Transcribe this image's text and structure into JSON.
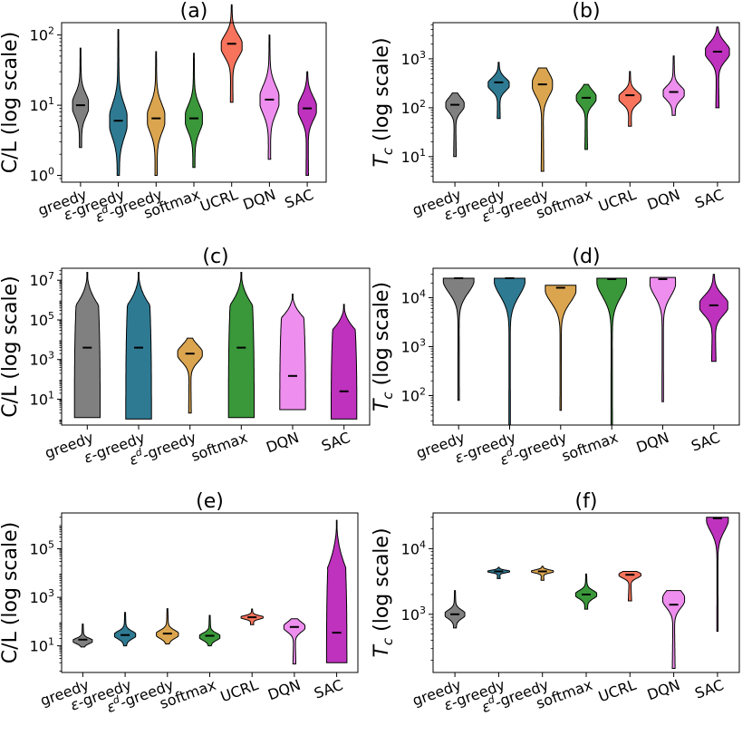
{
  "chart_data": [
    {
      "type": "violin",
      "panel": "a",
      "title": "(a)",
      "ylabel": "C/L (log scale)",
      "xlabel": "",
      "yscale": "log",
      "ylim": [
        0.8,
        150
      ],
      "yticks": [
        {
          "value": 1,
          "base": "10",
          "exp": "0"
        },
        {
          "value": 10,
          "base": "10",
          "exp": "1"
        },
        {
          "value": 100,
          "base": "10",
          "exp": "2"
        }
      ],
      "categories": [
        "greedy",
        "ε-greedy",
        "εd-greedy",
        "softmax",
        "UCRL",
        "DQN",
        "SAC"
      ],
      "category_labels": [
        {
          "main": "greedy"
        },
        {
          "main": "ε-greedy"
        },
        {
          "main": "ε",
          "sup": "d",
          "rest": "-greedy"
        },
        {
          "main": "softmax"
        },
        {
          "main": "UCRL"
        },
        {
          "main": "DQN"
        },
        {
          "main": "SAC"
        }
      ],
      "colors": [
        "#808080",
        "#2f7a93",
        "#dba550",
        "#3a973a",
        "#f7735c",
        "#ee8eee",
        "#be32be"
      ],
      "series": [
        {
          "name": "greedy",
          "min": 2.5,
          "max": 65,
          "median": 10,
          "mode": 10,
          "width": 0.42,
          "thin": 0.18
        },
        {
          "name": "ε-greedy",
          "min": 1.0,
          "max": 120,
          "median": 6,
          "mode": 6,
          "width": 0.46,
          "thin": 0.18
        },
        {
          "name": "εd-greedy",
          "min": 1.0,
          "max": 58,
          "median": 6.5,
          "mode": 6.5,
          "width": 0.46,
          "thin": 0.18
        },
        {
          "name": "softmax",
          "min": 1.3,
          "max": 55,
          "median": 6.5,
          "mode": 6.5,
          "width": 0.45,
          "thin": 0.18
        },
        {
          "name": "UCRL",
          "min": 11,
          "max": 270,
          "median": 75,
          "mode": 70,
          "width": 0.55,
          "thin": 0.22
        },
        {
          "name": "DQN",
          "min": 1.7,
          "max": 100,
          "median": 12,
          "mode": 12,
          "width": 0.5,
          "thin": 0.2
        },
        {
          "name": "SAC",
          "min": 1.0,
          "max": 30,
          "median": 9,
          "mode": 9,
          "width": 0.48,
          "thin": 0.2
        }
      ]
    },
    {
      "type": "violin",
      "panel": "b",
      "title": "(b)",
      "ylabel": "Tc (log scale)",
      "ylabel_main": "T",
      "ylabel_sub": "c",
      "ylabel_rest": " (log scale)",
      "xlabel": "",
      "yscale": "log",
      "ylim": [
        3,
        5500
      ],
      "yticks": [
        {
          "value": 10,
          "base": "10",
          "exp": "1"
        },
        {
          "value": 100,
          "base": "10",
          "exp": "2"
        },
        {
          "value": 1000,
          "base": "10",
          "exp": "3"
        }
      ],
      "categories": [
        "greedy",
        "ε-greedy",
        "εd-greedy",
        "softmax",
        "UCRL",
        "DQN",
        "SAC"
      ],
      "category_labels": [
        {
          "main": "greedy"
        },
        {
          "main": "ε-greedy"
        },
        {
          "main": "ε",
          "sup": "d",
          "rest": "-greedy"
        },
        {
          "main": "softmax"
        },
        {
          "main": "UCRL"
        },
        {
          "main": "DQN"
        },
        {
          "main": "SAC"
        }
      ],
      "colors": [
        "#808080",
        "#2f7a93",
        "#dba550",
        "#3a973a",
        "#f7735c",
        "#ee8eee",
        "#be32be"
      ],
      "series": [
        {
          "name": "greedy",
          "min": 10,
          "max": 200,
          "median": 115,
          "mode": 115,
          "width": 0.42,
          "thin": 0.18
        },
        {
          "name": "ε-greedy",
          "min": 60,
          "max": 850,
          "median": 330,
          "mode": 300,
          "width": 0.48,
          "thin": 0.22
        },
        {
          "name": "εd-greedy",
          "min": 5,
          "max": 650,
          "median": 300,
          "mode": 300,
          "width": 0.46,
          "thin": 0.18
        },
        {
          "name": "softmax",
          "min": 14,
          "max": 300,
          "median": 160,
          "mode": 160,
          "width": 0.45,
          "thin": 0.18
        },
        {
          "name": "UCRL",
          "min": 42,
          "max": 550,
          "median": 180,
          "mode": 160,
          "width": 0.5,
          "thin": 0.22
        },
        {
          "name": "DQN",
          "min": 70,
          "max": 1150,
          "median": 210,
          "mode": 200,
          "width": 0.48,
          "thin": 0.22
        },
        {
          "name": "SAC",
          "min": 100,
          "max": 4500,
          "median": 1400,
          "mode": 1400,
          "width": 0.55,
          "thin": 0.25
        }
      ]
    },
    {
      "type": "violin",
      "panel": "c",
      "title": "(c)",
      "ylabel": "C/L (log scale)",
      "xlabel": "",
      "yscale": "log",
      "ylim": [
        0.5,
        40000000.0
      ],
      "yticks": [
        {
          "value": 10,
          "base": "10",
          "exp": "1"
        },
        {
          "value": 1000,
          "base": "10",
          "exp": "3"
        },
        {
          "value": 100000,
          "base": "10",
          "exp": "5"
        },
        {
          "value": 10000000,
          "base": "10",
          "exp": "7"
        }
      ],
      "categories": [
        "greedy",
        "ε-greedy",
        "εd-greedy",
        "softmax",
        "DQN",
        "SAC"
      ],
      "category_labels": [
        {
          "main": "greedy"
        },
        {
          "main": "ε-greedy"
        },
        {
          "main": "ε",
          "sup": "d",
          "rest": "-greedy"
        },
        {
          "main": "softmax"
        },
        {
          "main": "DQN"
        },
        {
          "main": "SAC"
        }
      ],
      "colors": [
        "#808080",
        "#2f7a93",
        "#dba550",
        "#3a973a",
        "#ee8eee",
        "#be32be"
      ],
      "series": [
        {
          "name": "greedy",
          "min": 1.2,
          "max": 25000000.0,
          "median": 4000,
          "shape": "tapered",
          "widthLow": 0.5,
          "topKnee": 500000.0
        },
        {
          "name": "ε-greedy",
          "min": 1.0,
          "max": 25000000.0,
          "median": 4000,
          "shape": "tapered",
          "widthLow": 0.5,
          "topKnee": 500000.0
        },
        {
          "name": "εd-greedy",
          "min": 2.0,
          "max": 12000,
          "median": 2000,
          "mode": 2000,
          "width": 0.48,
          "thin": 0.14
        },
        {
          "name": "softmax",
          "min": 1.2,
          "max": 25000000.0,
          "median": 4000,
          "shape": "tapered",
          "widthLow": 0.5,
          "topKnee": 500000.0
        },
        {
          "name": "DQN",
          "min": 3.0,
          "max": 2000000.0,
          "median": 150,
          "shape": "tapered",
          "widthLow": 0.5,
          "topKnee": 120000.0
        },
        {
          "name": "SAC",
          "min": 1.0,
          "max": 600000.0,
          "median": 25,
          "shape": "tapered",
          "widthLow": 0.5,
          "topKnee": 30000.0
        }
      ]
    },
    {
      "type": "violin",
      "panel": "d",
      "title": "(d)",
      "ylabel": "Tc (log scale)",
      "ylabel_main": "T",
      "ylabel_sub": "c",
      "ylabel_rest": " (log scale)",
      "xlabel": "",
      "yscale": "log",
      "ylim": [
        25,
        40000
      ],
      "yticks": [
        {
          "value": 100,
          "base": "10",
          "exp": "2"
        },
        {
          "value": 1000,
          "base": "10",
          "exp": "3"
        },
        {
          "value": 10000,
          "base": "10",
          "exp": "4"
        }
      ],
      "categories": [
        "greedy",
        "ε-greedy",
        "εd-greedy",
        "softmax",
        "DQN",
        "SAC"
      ],
      "category_labels": [
        {
          "main": "greedy"
        },
        {
          "main": "ε-greedy"
        },
        {
          "main": "ε",
          "sup": "d",
          "rest": "-greedy"
        },
        {
          "main": "softmax"
        },
        {
          "main": "DQN"
        },
        {
          "main": "SAC"
        }
      ],
      "colors": [
        "#808080",
        "#2f7a93",
        "#dba550",
        "#3a973a",
        "#ee8eee",
        "#be32be"
      ],
      "series": [
        {
          "name": "greedy",
          "min": 80,
          "max": 25000,
          "median": 25000,
          "mode": 24000,
          "width": 0.6,
          "thin": 0.04
        },
        {
          "name": "ε-greedy",
          "min": 25,
          "max": 25000,
          "median": 25000,
          "mode": 24000,
          "width": 0.6,
          "thin": 0.04
        },
        {
          "name": "εd-greedy",
          "min": 50,
          "max": 18000,
          "median": 16000,
          "mode": 15500,
          "width": 0.6,
          "thin": 0.04
        },
        {
          "name": "softmax",
          "min": 25,
          "max": 25000,
          "median": 24000,
          "mode": 23000,
          "width": 0.58,
          "thin": 0.04
        },
        {
          "name": "DQN",
          "min": 75,
          "max": 26000,
          "median": 24000,
          "mode": 21000,
          "width": 0.5,
          "thin": 0.04
        },
        {
          "name": "SAC",
          "min": 500,
          "max": 30000,
          "median": 7000,
          "mode": 7000,
          "width": 0.55,
          "thin": 0.3
        }
      ]
    },
    {
      "type": "violin",
      "panel": "e",
      "title": "(e)",
      "ylabel": "C/L (log scale)",
      "xlabel": "",
      "yscale": "log",
      "ylim": [
        0.8,
        3000000.0
      ],
      "yticks": [
        {
          "value": 10,
          "base": "10",
          "exp": "1"
        },
        {
          "value": 1000,
          "base": "10",
          "exp": "3"
        },
        {
          "value": 100000,
          "base": "10",
          "exp": "5"
        }
      ],
      "categories": [
        "greedy",
        "ε-greedy",
        "εd-greedy",
        "softmax",
        "UCRL",
        "DQN",
        "SAC"
      ],
      "category_labels": [
        {
          "main": "greedy"
        },
        {
          "main": "ε-greedy"
        },
        {
          "main": "ε",
          "sup": "d",
          "rest": "-greedy"
        },
        {
          "main": "softmax"
        },
        {
          "main": "UCRL"
        },
        {
          "main": "DQN"
        },
        {
          "main": "SAC"
        }
      ],
      "colors": [
        "#808080",
        "#2f7a93",
        "#dba550",
        "#3a973a",
        "#f7735c",
        "#ee8eee",
        "#be32be"
      ],
      "series": [
        {
          "name": "greedy",
          "min": 9,
          "max": 80,
          "median": 18,
          "mode": 16,
          "width": 0.45,
          "thin": 0.2
        },
        {
          "name": "ε-greedy",
          "min": 10,
          "max": 240,
          "median": 28,
          "mode": 28,
          "width": 0.5,
          "thin": 0.2
        },
        {
          "name": "εd-greedy",
          "min": 12,
          "max": 340,
          "median": 32,
          "mode": 30,
          "width": 0.52,
          "thin": 0.2
        },
        {
          "name": "softmax",
          "min": 10,
          "max": 180,
          "median": 26,
          "mode": 24,
          "width": 0.48,
          "thin": 0.2
        },
        {
          "name": "UCRL",
          "min": 75,
          "max": 330,
          "median": 150,
          "mode": 150,
          "width": 0.52,
          "thin": 0.25
        },
        {
          "name": "DQN",
          "min": 1.8,
          "max": 130,
          "median": 60,
          "mode": 60,
          "width": 0.5,
          "thin": 0.22
        },
        {
          "name": "SAC",
          "min": 2.0,
          "max": 1500000.0,
          "median": 35,
          "shape": "tapered",
          "widthLow": 0.48,
          "topKnee": 15000.0
        }
      ]
    },
    {
      "type": "violin",
      "panel": "f",
      "title": "(f)",
      "ylabel": "Tc (log scale)",
      "ylabel_main": "T",
      "ylabel_sub": "c",
      "ylabel_rest": " (log scale)",
      "xlabel": "",
      "yscale": "log",
      "ylim": [
        130,
        35000
      ],
      "yticks": [
        {
          "value": 1000,
          "base": "10",
          "exp": "3"
        },
        {
          "value": 10000,
          "base": "10",
          "exp": "4"
        }
      ],
      "categories": [
        "greedy",
        "ε-greedy",
        "εd-greedy",
        "softmax",
        "UCRL",
        "DQN",
        "SAC"
      ],
      "category_labels": [
        {
          "main": "greedy"
        },
        {
          "main": "ε-greedy"
        },
        {
          "main": "ε",
          "sup": "d",
          "rest": "-greedy"
        },
        {
          "main": "softmax"
        },
        {
          "main": "UCRL"
        },
        {
          "main": "DQN"
        },
        {
          "main": "SAC"
        }
      ],
      "colors": [
        "#808080",
        "#2f7a93",
        "#dba550",
        "#3a973a",
        "#f7735c",
        "#ee8eee",
        "#be32be"
      ],
      "series": [
        {
          "name": "greedy",
          "min": 620,
          "max": 2300,
          "median": 1000,
          "mode": 1000,
          "width": 0.45,
          "thin": 0.2
        },
        {
          "name": "ε-greedy",
          "min": 3500,
          "max": 5200,
          "median": 4500,
          "mode": 4500,
          "width": 0.5,
          "thin": 0.22
        },
        {
          "name": "εd-greedy",
          "min": 3300,
          "max": 5400,
          "median": 4500,
          "mode": 4500,
          "width": 0.5,
          "thin": 0.22
        },
        {
          "name": "softmax",
          "min": 1200,
          "max": 4100,
          "median": 2000,
          "mode": 2000,
          "width": 0.48,
          "thin": 0.22
        },
        {
          "name": "UCRL",
          "min": 1600,
          "max": 4500,
          "median": 4000,
          "mode": 4000,
          "width": 0.5,
          "thin": 0.25
        },
        {
          "name": "DQN",
          "min": 150,
          "max": 2300,
          "median": 1400,
          "mode": 1700,
          "width": 0.5,
          "thin": 0.2
        },
        {
          "name": "SAC",
          "min": 550,
          "max": 30000,
          "median": 29000,
          "mode": 29000,
          "width": 0.5,
          "thin": 0.03
        }
      ]
    }
  ]
}
